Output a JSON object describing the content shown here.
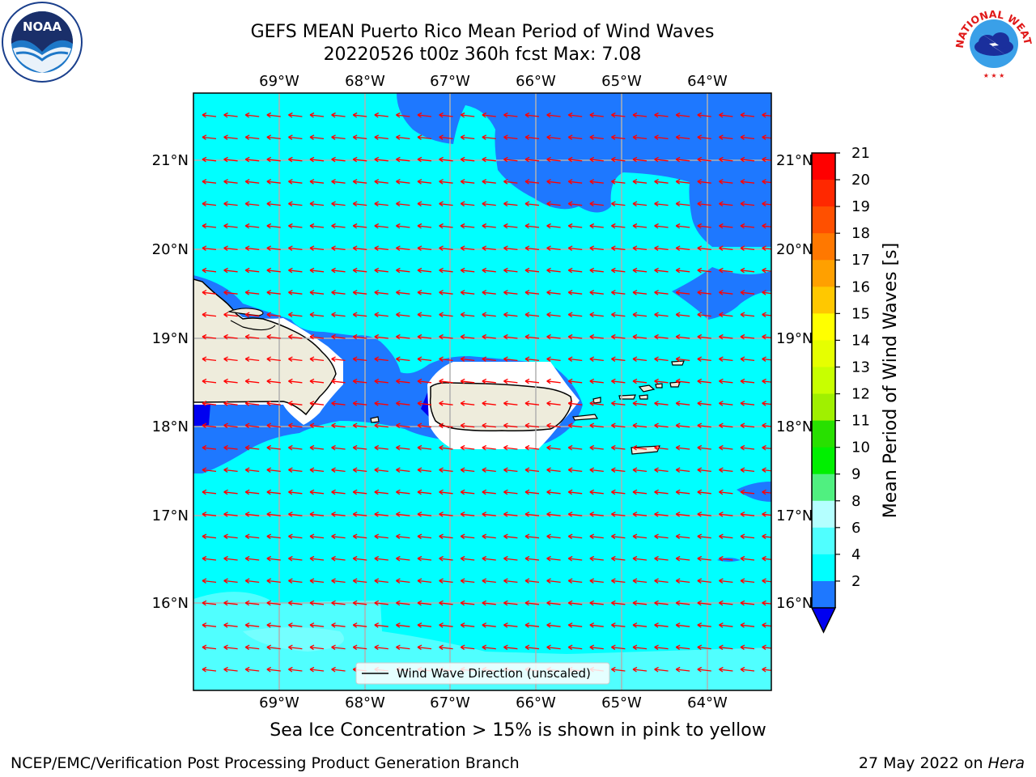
{
  "header": {
    "title_line1": "GEFS MEAN Puerto Rico Mean Period of Wind Waves",
    "title_line2": "20220526 t00z 360h fcst   Max: 7.08"
  },
  "logos": {
    "left": {
      "icon": "noaa-logo",
      "text": "NOAA"
    },
    "right": {
      "icon": "nws-logo",
      "text": "NATIONAL WEATHER SERVICE"
    }
  },
  "map": {
    "lon_labels": [
      "69°W",
      "68°W",
      "67°W",
      "66°W",
      "65°W",
      "64°W"
    ],
    "lat_labels": [
      "21°N",
      "20°N",
      "19°N",
      "18°N",
      "17°N",
      "16°N"
    ],
    "legend_label": "Wind Wave Direction (unscaled)",
    "arrow_color": "#ff0000",
    "land_color": "#eeecdc",
    "colors": {
      "dark_blue": "#1e78ff",
      "cyan": "#00ffff",
      "light_cyan": "#50ffff",
      "pale_cyan": "#8cffff"
    }
  },
  "colorbar": {
    "label": "Mean Period of Wind Waves [s]",
    "ticks": [
      "21",
      "20",
      "19",
      "18",
      "17",
      "16",
      "15",
      "14",
      "13",
      "12",
      "11",
      "10",
      "9",
      "8",
      "6",
      "4",
      "2"
    ],
    "bands_top_to_bottom": [
      "#ff0000",
      "#ff2800",
      "#ff5000",
      "#ff7800",
      "#ffa000",
      "#ffc800",
      "#ffff00",
      "#e6ff00",
      "#c8ff00",
      "#a0f000",
      "#28e000",
      "#00f000",
      "#50f080",
      "#b4ffff",
      "#50ffff",
      "#00ffff",
      "#1e78ff"
    ],
    "extend_color": "#0000f0"
  },
  "footer": {
    "ice_note": "Sea Ice Concentration > 15% is shown in pink to yellow",
    "left": "NCEP/EMC/Verification Post Processing Product Generation Branch",
    "date": "27 May 2022 on ",
    "host": "Hera"
  }
}
